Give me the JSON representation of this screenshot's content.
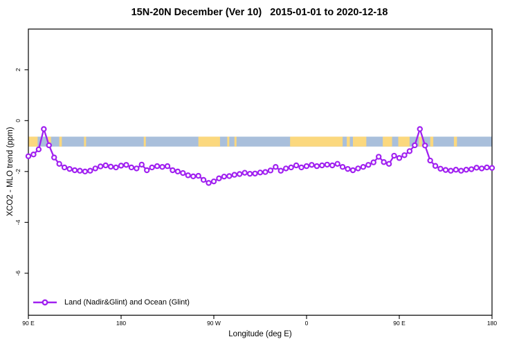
{
  "title": "15N-20N December (Ver 10)   2015-01-01 to 2020-12-18",
  "legend": {
    "label": "Land (Nadir&Glint) and Ocean (Glint)"
  },
  "colors": {
    "series_purple": "#A020F0",
    "marker_fill": "#ffffff",
    "ocean_band_blue": "#A9BFDB",
    "land_band_yellow": "#FBD87E",
    "axis_black": "#000000",
    "background": "#ffffff"
  },
  "chart_data": {
    "type": "line",
    "title": "15N-20N December (Ver 10)   2015-01-01 to 2020-12-18",
    "xlabel": "Longitude (deg E)",
    "ylabel": "XCO2 - MLO trend (ppm)",
    "xlim": [
      90,
      540
    ],
    "ylim": [
      -7.65,
      3.6
    ],
    "grid": false,
    "legend_position": "bottom-left",
    "x_ticks": [
      {
        "lon": 90,
        "label": "90 E"
      },
      {
        "lon": 180,
        "label": "180"
      },
      {
        "lon": 270,
        "label": "90 W"
      },
      {
        "lon": 360,
        "label": "0"
      },
      {
        "lon": 450,
        "label": "90 E"
      },
      {
        "lon": 540,
        "label": "180"
      }
    ],
    "y_ticks": [
      {
        "value": 2,
        "label": "2"
      },
      {
        "value": 0,
        "label": "0"
      },
      {
        "value": -2,
        "label": "-2"
      },
      {
        "value": -4,
        "label": "-4"
      },
      {
        "value": -6,
        "label": "-6"
      }
    ],
    "map_band": {
      "y_top": -0.63,
      "y_bottom": -1.02,
      "ocean_color": "#A9BFDB",
      "land_color": "#FBD87E",
      "land_segments": [
        [
          90,
          99
        ],
        [
          109,
          112
        ],
        [
          120,
          122.5
        ],
        [
          144,
          146
        ],
        [
          202,
          204
        ],
        [
          255,
          276
        ],
        [
          283,
          285
        ],
        [
          290,
          292
        ],
        [
          344,
          395
        ],
        [
          399,
          402
        ],
        [
          405,
          418
        ],
        [
          434,
          443
        ],
        [
          449,
          460
        ],
        [
          469,
          472
        ],
        [
          480,
          483
        ],
        [
          503,
          506
        ]
      ]
    },
    "series": [
      {
        "name": "Land (Nadir&Glint) and Ocean (Glint)",
        "color": "#A020F0",
        "marker": "open-circle",
        "x": [
          90,
          95,
          100,
          105,
          110,
          115,
          120,
          125,
          130,
          135,
          140,
          145,
          150,
          155,
          160,
          165,
          170,
          175,
          180,
          185,
          190,
          195,
          200,
          205,
          210,
          215,
          220,
          225,
          230,
          235,
          240,
          245,
          250,
          255,
          260,
          265,
          270,
          275,
          280,
          285,
          290,
          295,
          300,
          305,
          310,
          315,
          320,
          325,
          330,
          335,
          340,
          345,
          350,
          355,
          360,
          365,
          370,
          375,
          380,
          385,
          390,
          395,
          400,
          405,
          410,
          415,
          420,
          425,
          430,
          435,
          440,
          445,
          450,
          455,
          460,
          465,
          470,
          475,
          480,
          485,
          490,
          495,
          500,
          505,
          510,
          515,
          520,
          525,
          530,
          535,
          540
        ],
        "y": [
          -1.4,
          -1.33,
          -1.13,
          -0.33,
          -0.97,
          -1.45,
          -1.7,
          -1.84,
          -1.9,
          -1.95,
          -1.97,
          -2.0,
          -1.97,
          -1.88,
          -1.8,
          -1.76,
          -1.81,
          -1.84,
          -1.77,
          -1.74,
          -1.84,
          -1.88,
          -1.73,
          -1.95,
          -1.84,
          -1.79,
          -1.82,
          -1.79,
          -1.95,
          -2.0,
          -2.06,
          -2.15,
          -2.19,
          -2.17,
          -2.33,
          -2.45,
          -2.39,
          -2.27,
          -2.2,
          -2.18,
          -2.13,
          -2.1,
          -2.05,
          -2.09,
          -2.08,
          -2.04,
          -2.02,
          -1.96,
          -1.82,
          -1.97,
          -1.88,
          -1.84,
          -1.76,
          -1.84,
          -1.79,
          -1.74,
          -1.79,
          -1.76,
          -1.73,
          -1.76,
          -1.7,
          -1.82,
          -1.9,
          -1.95,
          -1.88,
          -1.82,
          -1.74,
          -1.64,
          -1.42,
          -1.63,
          -1.7,
          -1.38,
          -1.47,
          -1.36,
          -1.2,
          -0.97,
          -0.33,
          -0.98,
          -1.57,
          -1.78,
          -1.89,
          -1.94,
          -1.97,
          -1.93,
          -1.97,
          -1.93,
          -1.91,
          -1.85,
          -1.88,
          -1.84,
          -1.86
        ]
      }
    ]
  }
}
